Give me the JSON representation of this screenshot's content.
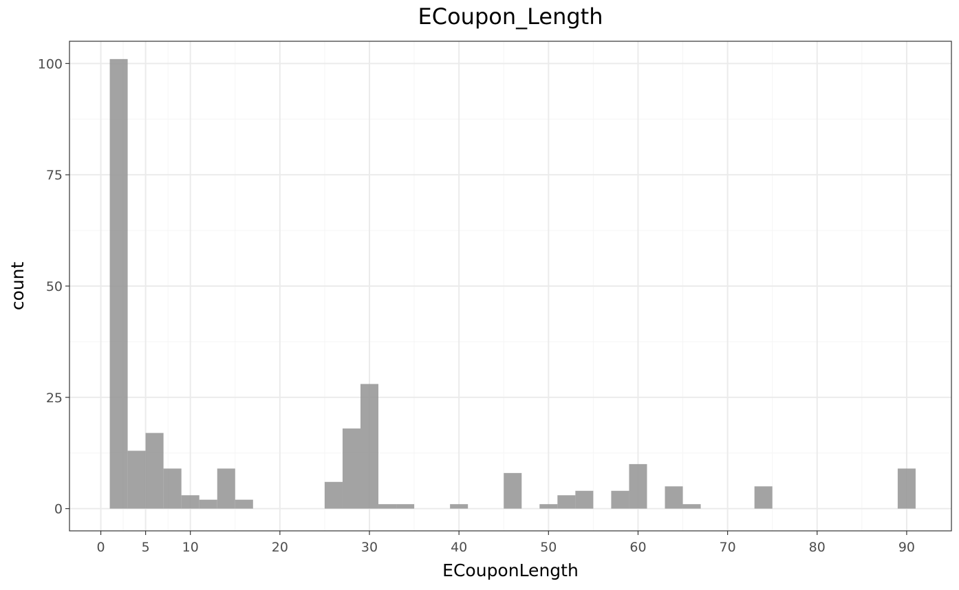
{
  "chart_data": {
    "type": "bar",
    "title": "ECoupon_Length",
    "xlabel": "ECouponLength",
    "ylabel": "count",
    "xlim": [
      -3.5,
      95
    ],
    "ylim": [
      -5,
      105
    ],
    "x_ticks": [
      0,
      5,
      10,
      20,
      30,
      40,
      50,
      60,
      70,
      80,
      90
    ],
    "y_ticks": [
      0,
      25,
      50,
      75,
      100
    ],
    "grid": true,
    "bin_width": 2,
    "bins": [
      {
        "x0": 1,
        "x1": 3,
        "count": 101
      },
      {
        "x0": 3,
        "x1": 5,
        "count": 13
      },
      {
        "x0": 5,
        "x1": 7,
        "count": 17
      },
      {
        "x0": 7,
        "x1": 9,
        "count": 9
      },
      {
        "x0": 9,
        "x1": 11,
        "count": 3
      },
      {
        "x0": 11,
        "x1": 13,
        "count": 2
      },
      {
        "x0": 13,
        "x1": 15,
        "count": 9
      },
      {
        "x0": 15,
        "x1": 17,
        "count": 2
      },
      {
        "x0": 25,
        "x1": 27,
        "count": 6
      },
      {
        "x0": 27,
        "x1": 29,
        "count": 18
      },
      {
        "x0": 29,
        "x1": 31,
        "count": 28
      },
      {
        "x0": 31,
        "x1": 33,
        "count": 1
      },
      {
        "x0": 33,
        "x1": 35,
        "count": 1
      },
      {
        "x0": 39,
        "x1": 41,
        "count": 1
      },
      {
        "x0": 45,
        "x1": 47,
        "count": 8
      },
      {
        "x0": 49,
        "x1": 51,
        "count": 1
      },
      {
        "x0": 51,
        "x1": 53,
        "count": 3
      },
      {
        "x0": 53,
        "x1": 55,
        "count": 4
      },
      {
        "x0": 57,
        "x1": 59,
        "count": 4
      },
      {
        "x0": 59,
        "x1": 61,
        "count": 10
      },
      {
        "x0": 63,
        "x1": 65,
        "count": 5
      },
      {
        "x0": 65,
        "x1": 67,
        "count": 1
      },
      {
        "x0": 73,
        "x1": 75,
        "count": 5
      },
      {
        "x0": 89,
        "x1": 91,
        "count": 9
      }
    ],
    "colors": {
      "bar": "#999999",
      "grid_major": "#ebebeb",
      "grid_minor": "#f5f5f5",
      "panel_border": "#333333",
      "tick_text": "#4d4d4d"
    }
  }
}
